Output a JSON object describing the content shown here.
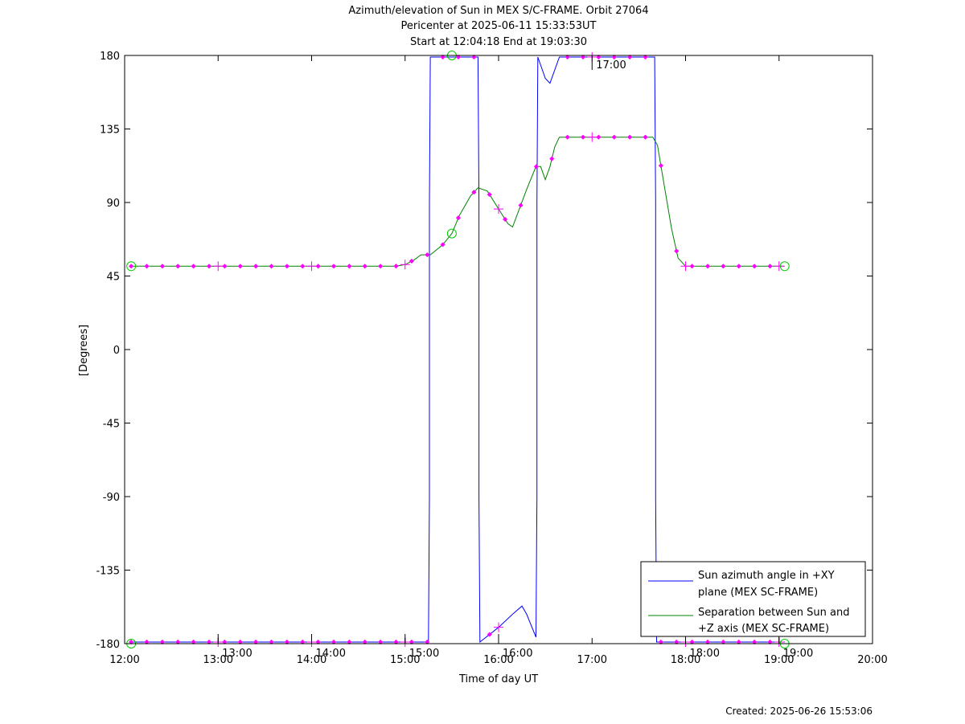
{
  "chart_data": {
    "type": "line",
    "title_lines": [
      "Azimuth/elevation of Sun in MEX S/C-FRAME.  Orbit 27064",
      "Pericenter at 2025-06-11 15:33:53UT",
      "Start at 12:04:18 End at 19:03:30"
    ],
    "xlabel": "Time of day UT",
    "ylabel": "[Degrees]",
    "xlim": [
      12,
      20
    ],
    "ylim": [
      -180,
      180
    ],
    "x_ticks": [
      {
        "value": 12,
        "label": "12:00"
      },
      {
        "value": 13,
        "label": "13:00"
      },
      {
        "value": 14,
        "label": "14:00"
      },
      {
        "value": 15,
        "label": "15:00"
      },
      {
        "value": 16,
        "label": "16:00"
      },
      {
        "value": 17,
        "label": "17:00"
      },
      {
        "value": 18,
        "label": "18:00"
      },
      {
        "value": 19,
        "label": "19:00"
      },
      {
        "value": 20,
        "label": "20:00"
      }
    ],
    "y_ticks": [
      {
        "value": 180,
        "label": "180"
      },
      {
        "value": 135,
        "label": "135"
      },
      {
        "value": 90,
        "label": "90"
      },
      {
        "value": 45,
        "label": "45"
      },
      {
        "value": 0,
        "label": "0"
      },
      {
        "value": -45,
        "label": "-45"
      },
      {
        "value": -90,
        "label": "-90"
      },
      {
        "value": -135,
        "label": "-135"
      },
      {
        "value": -180,
        "label": "-180"
      }
    ],
    "hour_annotations": [
      {
        "x": 13,
        "y": -180,
        "label": "13:00"
      },
      {
        "x": 14,
        "y": -180,
        "label": "14:00"
      },
      {
        "x": 15,
        "y": -180,
        "label": "15:00"
      },
      {
        "x": 16,
        "y": -180,
        "label": "16:00"
      },
      {
        "x": 17,
        "y": 180,
        "label": "17:00"
      },
      {
        "x": 18,
        "y": -180,
        "label": "18:00"
      },
      {
        "x": 19,
        "y": -180,
        "label": "19:00"
      }
    ],
    "series": [
      {
        "name": "Sun azimuth angle in +XY plane (MEX SC-FRAME)",
        "legend_lines": [
          "Sun azimuth angle in +XY",
          "plane (MEX SC-FRAME)"
        ],
        "color": "#0000ff",
        "x": [
          12.07,
          15.0,
          15.25,
          15.26,
          15.26,
          15.27,
          15.5,
          15.78,
          15.79,
          15.79,
          15.8,
          16.0,
          16.15,
          16.25,
          16.3,
          16.4,
          16.41,
          16.41,
          16.42,
          16.5,
          16.55,
          16.65,
          17.0,
          17.67,
          17.68,
          17.68,
          17.69,
          18.0,
          19.06
        ],
        "y": [
          -179,
          -179,
          -179,
          -90,
          90,
          179,
          179,
          179,
          90,
          -90,
          -179,
          -170,
          -162,
          -157,
          -162,
          -176,
          -90,
          90,
          179,
          166,
          163,
          179,
          179,
          179,
          90,
          -90,
          -179,
          -179,
          -179
        ]
      },
      {
        "name": "Separation between Sun and +Z axis (MEX SC-FRAME)",
        "legend_lines": [
          "Separation between Sun and",
          "+Z axis (MEX SC-FRAME)"
        ],
        "color": "#008000",
        "x": [
          12.07,
          13.0,
          14.0,
          14.9,
          15.0,
          15.1,
          15.17,
          15.27,
          15.4,
          15.5,
          15.58,
          15.7,
          15.78,
          15.88,
          16.0,
          16.1,
          16.15,
          16.3,
          16.4,
          16.45,
          16.5,
          16.55,
          16.6,
          16.65,
          17.0,
          17.5,
          17.65,
          17.7,
          17.75,
          17.85,
          17.92,
          18.0,
          19.06
        ],
        "y": [
          51,
          51,
          51,
          51,
          52,
          55,
          58,
          58,
          64,
          71,
          82,
          94,
          99,
          97,
          86,
          77,
          75,
          98,
          112,
          112,
          104,
          112,
          124,
          130,
          130,
          130,
          130,
          125,
          108,
          74,
          56,
          51,
          51
        ]
      }
    ],
    "marker_color": "#ff00ff",
    "circle_marker_color": "#00cc00",
    "sun_markers": [
      {
        "x": 12.07,
        "y": -180
      },
      {
        "x": 19.06,
        "y": -180
      },
      {
        "x": 15.5,
        "y": 180
      },
      {
        "x": 12.07,
        "y": 51
      },
      {
        "x": 19.06,
        "y": 51
      },
      {
        "x": 15.5,
        "y": 71
      }
    ],
    "legend_position": "bottom-right",
    "footer": "Created: 2025-06-26 15:53:06"
  }
}
